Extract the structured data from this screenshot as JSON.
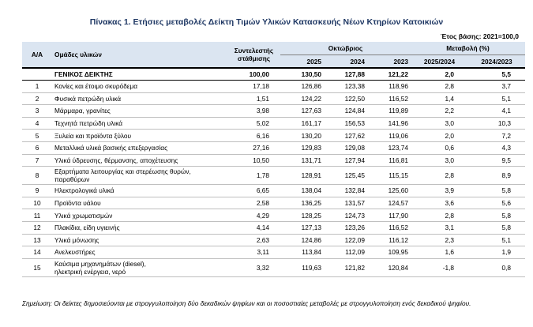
{
  "title": "Πίνακας 1. Ετήσιες μεταβολές Δείκτη Τιμών Υλικών Κατασκευής Νέων Κτηρίων Κατοικιών",
  "base_year": "Έτος βάσης: 2021=100,0",
  "header": {
    "aa": "Α/Α",
    "groups": "Ομάδες υλικών",
    "weight": "Συντελεστής στάθμισης",
    "october": "Οκτώβριος",
    "change": "Μεταβολή (%)",
    "y2025": "2025",
    "y2024": "2024",
    "y2023": "2023",
    "ch1": "2025/2024",
    "ch2": "2024/2023"
  },
  "total": {
    "name": "ΓΕΝΙΚΟΣ ΔΕΙΚΤΗΣ",
    "weight": "100,00",
    "v2025": "130,50",
    "v2024": "127,88",
    "v2023": "121,22",
    "c1": "2,0",
    "c2": "5,5"
  },
  "rows": [
    {
      "aa": "1",
      "name": "Κονίες και έτοιμο σκυρόδεμα",
      "weight": "17,18",
      "v2025": "126,86",
      "v2024": "123,38",
      "v2023": "118,96",
      "c1": "2,8",
      "c2": "3,7"
    },
    {
      "aa": "2",
      "name": "Φυσικά πετρώδη υλικά",
      "weight": "1,51",
      "v2025": "124,22",
      "v2024": "122,50",
      "v2023": "116,52",
      "c1": "1,4",
      "c2": "5,1"
    },
    {
      "aa": "3",
      "name": "Μάρμαρα, γρανίτες",
      "weight": "3,98",
      "v2025": "127,63",
      "v2024": "124,84",
      "v2023": "119,89",
      "c1": "2,2",
      "c2": "4,1"
    },
    {
      "aa": "4",
      "name": "Τεχνητά πετρώδη υλικά",
      "weight": "5,02",
      "v2025": "161,17",
      "v2024": "156,53",
      "v2023": "141,96",
      "c1": "3,0",
      "c2": "10,3"
    },
    {
      "aa": "5",
      "name": "Ξυλεία και προϊόντα ξύλου",
      "weight": "6,16",
      "v2025": "130,20",
      "v2024": "127,62",
      "v2023": "119,06",
      "c1": "2,0",
      "c2": "7,2"
    },
    {
      "aa": "6",
      "name": "Μεταλλικά υλικά βασικής επεξεργασίας",
      "weight": "27,16",
      "v2025": "129,83",
      "v2024": "129,08",
      "v2023": "123,74",
      "c1": "0,6",
      "c2": "4,3"
    },
    {
      "aa": "7",
      "name": "Υλικά ύδρευσης, θέρμανσης, αποχέτευσης",
      "weight": "10,50",
      "v2025": "131,71",
      "v2024": "127,94",
      "v2023": "116,81",
      "c1": "3,0",
      "c2": "9,5"
    },
    {
      "aa": "8",
      "name_line1": "Εξαρτήματα λειτουργίας και στερέωσης θυρών,",
      "name_line2": "παραθύρων",
      "weight": "1,78",
      "v2025": "128,91",
      "v2024": "125,45",
      "v2023": "115,15",
      "c1": "2,8",
      "c2": "8,9"
    },
    {
      "aa": "9",
      "name": "Ηλεκτρολογικά υλικά",
      "weight": "6,65",
      "v2025": "138,04",
      "v2024": "132,84",
      "v2023": "125,60",
      "c1": "3,9",
      "c2": "5,8"
    },
    {
      "aa": "10",
      "name": "Προϊόντα υάλου",
      "weight": "2,58",
      "v2025": "136,25",
      "v2024": "131,57",
      "v2023": "124,57",
      "c1": "3,6",
      "c2": "5,6"
    },
    {
      "aa": "11",
      "name": "Υλικά χρωματισμών",
      "weight": "4,29",
      "v2025": "128,25",
      "v2024": "124,73",
      "v2023": "117,90",
      "c1": "2,8",
      "c2": "5,8"
    },
    {
      "aa": "12",
      "name": "Πλακίδια, είδη υγιεινής",
      "weight": "4,14",
      "v2025": "127,13",
      "v2024": "123,26",
      "v2023": "116,52",
      "c1": "3,1",
      "c2": "5,8"
    },
    {
      "aa": "13",
      "name": "Υλικά μόνωσης",
      "weight": "2,63",
      "v2025": "124,86",
      "v2024": "122,09",
      "v2023": "116,12",
      "c1": "2,3",
      "c2": "5,1"
    },
    {
      "aa": "14",
      "name": "Ανελκυστήρες",
      "weight": "3,11",
      "v2025": "113,84",
      "v2024": "112,09",
      "v2023": "109,95",
      "c1": "1,6",
      "c2": "1,9"
    },
    {
      "aa": "15",
      "name_line1": "Καύσιμα μηχανημάτων (diesel),",
      "name_line2": "ηλεκτρική ενέργεια, νερό",
      "weight": "3,32",
      "v2025": "119,63",
      "v2024": "121,82",
      "v2023": "120,84",
      "c1": "-1,8",
      "c2": "0,8"
    }
  ],
  "footnote": "Σημείωση: Οι δείκτες δημοσιεύονται με στρογγυλοποίηση δύο δεκαδικών ψηφίων και οι ποσοστιαίες μεταβολές με στρογγυλοποίηση ενός δεκαδικού ψηφίου."
}
